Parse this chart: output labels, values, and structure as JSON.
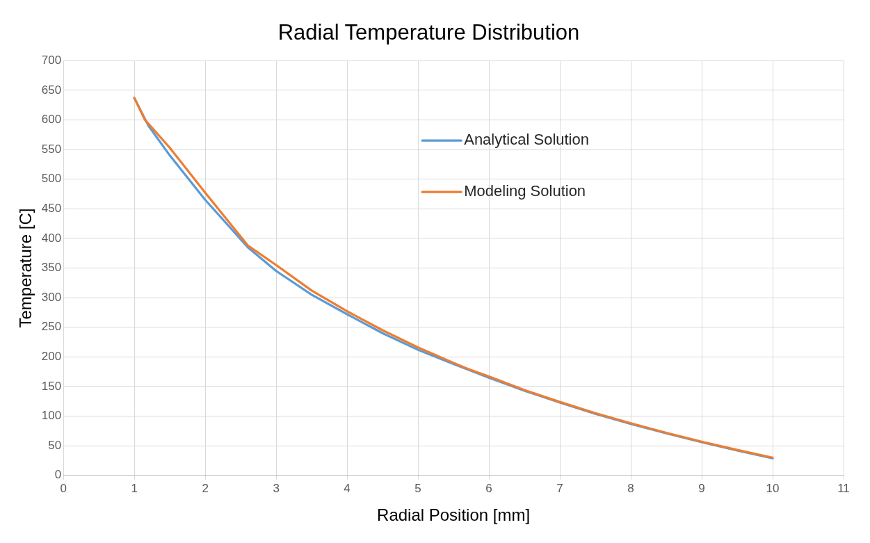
{
  "chart_data": {
    "type": "line",
    "title": "Radial Temperature Distribution",
    "xlabel": "Radial Position [mm]",
    "ylabel": "Temperature [C]",
    "xlim": [
      0,
      11
    ],
    "xticks": [
      0,
      1,
      2,
      3,
      4,
      5,
      6,
      7,
      8,
      9,
      10,
      11
    ],
    "ylim": [
      0,
      700
    ],
    "yticks": [
      0,
      50,
      100,
      150,
      200,
      250,
      300,
      350,
      400,
      450,
      500,
      550,
      600,
      650,
      700
    ],
    "grid": true,
    "legend": "top right",
    "marker": "none",
    "line_style": "solid",
    "series": [
      {
        "name": "Analytical Solution",
        "color": "#5b9bd5",
        "x": [
          1,
          1.2,
          1.5,
          2,
          2.6,
          3,
          3.5,
          4,
          4.5,
          5,
          5.5,
          6,
          6.5,
          7,
          7.5,
          8,
          8.5,
          9,
          9.5,
          10
        ],
        "values": [
          637,
          590,
          540,
          465,
          385,
          345,
          305,
          272,
          240,
          212,
          188,
          165,
          143,
          123,
          104,
          87,
          71,
          56,
          42,
          29
        ]
      },
      {
        "name": "Modeling Solution",
        "color": "#ed7d31",
        "x": [
          1,
          1.15,
          1.5,
          2,
          2.6,
          3,
          3.5,
          4,
          4.5,
          5,
          5.5,
          5.7,
          6,
          6.5,
          7,
          7.5,
          8,
          8.5,
          9,
          9.5,
          10
        ],
        "values": [
          637,
          600,
          553,
          477,
          388,
          355,
          312,
          277,
          245,
          216,
          190,
          180,
          167,
          144,
          124,
          105,
          88,
          72,
          57,
          43,
          30
        ]
      }
    ]
  }
}
